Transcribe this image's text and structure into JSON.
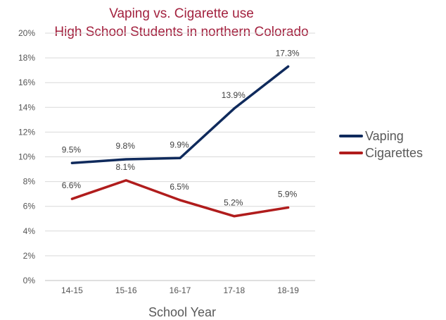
{
  "chart_data": {
    "type": "line",
    "title_lines": [
      "Vaping vs. Cigarette use",
      "High School Students in northern Colorado"
    ],
    "xlabel": "School Year",
    "ylabel": "",
    "categories": [
      "14-15",
      "15-16",
      "16-17",
      "17-18",
      "18-19"
    ],
    "y_ticks": [
      "0%",
      "2%",
      "4%",
      "6%",
      "8%",
      "10%",
      "12%",
      "14%",
      "16%",
      "18%",
      "20%"
    ],
    "ylim": [
      0,
      20
    ],
    "grid": true,
    "legend_position": "right",
    "series": [
      {
        "name": "Vaping",
        "color": "#0f2a5c",
        "values": [
          9.5,
          9.8,
          9.9,
          13.9,
          17.3
        ],
        "labels": [
          "9.5%",
          "9.8%",
          "9.9%",
          "13.9%",
          "17.3%"
        ]
      },
      {
        "name": "Cigarettes",
        "color": "#b01c1c",
        "values": [
          6.6,
          8.1,
          6.5,
          5.2,
          5.9
        ],
        "labels": [
          "6.6%",
          "8.1%",
          "6.5%",
          "5.2%",
          "5.9%"
        ]
      }
    ],
    "title_color": "#a3223f"
  }
}
